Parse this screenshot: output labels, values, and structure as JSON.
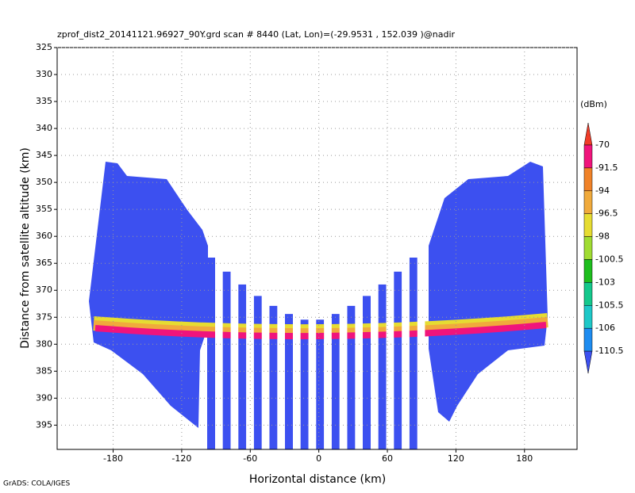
{
  "chart_data": {
    "type": "heatmap",
    "title": "zprof_dist2_20141121.96927_90Y.grd  scan # 8440  (Lat, Lon)=(-29.9531 , 152.039 )@nadir",
    "x_label": "Horizontal distance (km)",
    "y_label": "Distance from satellite altitude (km)",
    "credit": "GrADS: COLA/IGES",
    "xlim": [
      -229,
      226
    ],
    "xticks": [
      -180,
      -120,
      -60,
      0,
      60,
      120,
      180
    ],
    "ylim": [
      325,
      399.5
    ],
    "yticks": [
      325,
      330,
      335,
      340,
      345,
      350,
      355,
      360,
      365,
      370,
      375,
      380,
      385,
      390,
      395
    ],
    "y_inverted": true,
    "grid": true,
    "colorbar": {
      "label": "(dBm)",
      "levels": [
        -70,
        -91.5,
        -94,
        -96.5,
        -98,
        -100.5,
        -103,
        -105.5,
        -106,
        -110.5
      ],
      "colors": [
        "#f03c28",
        "#f0147c",
        "#f08228",
        "#f0aa3c",
        "#e6dc32",
        "#a0dc32",
        "#1ebe1e",
        "#14c88c",
        "#1ec8c8",
        "#1e8cf0",
        "#3c50f0"
      ]
    }
  }
}
